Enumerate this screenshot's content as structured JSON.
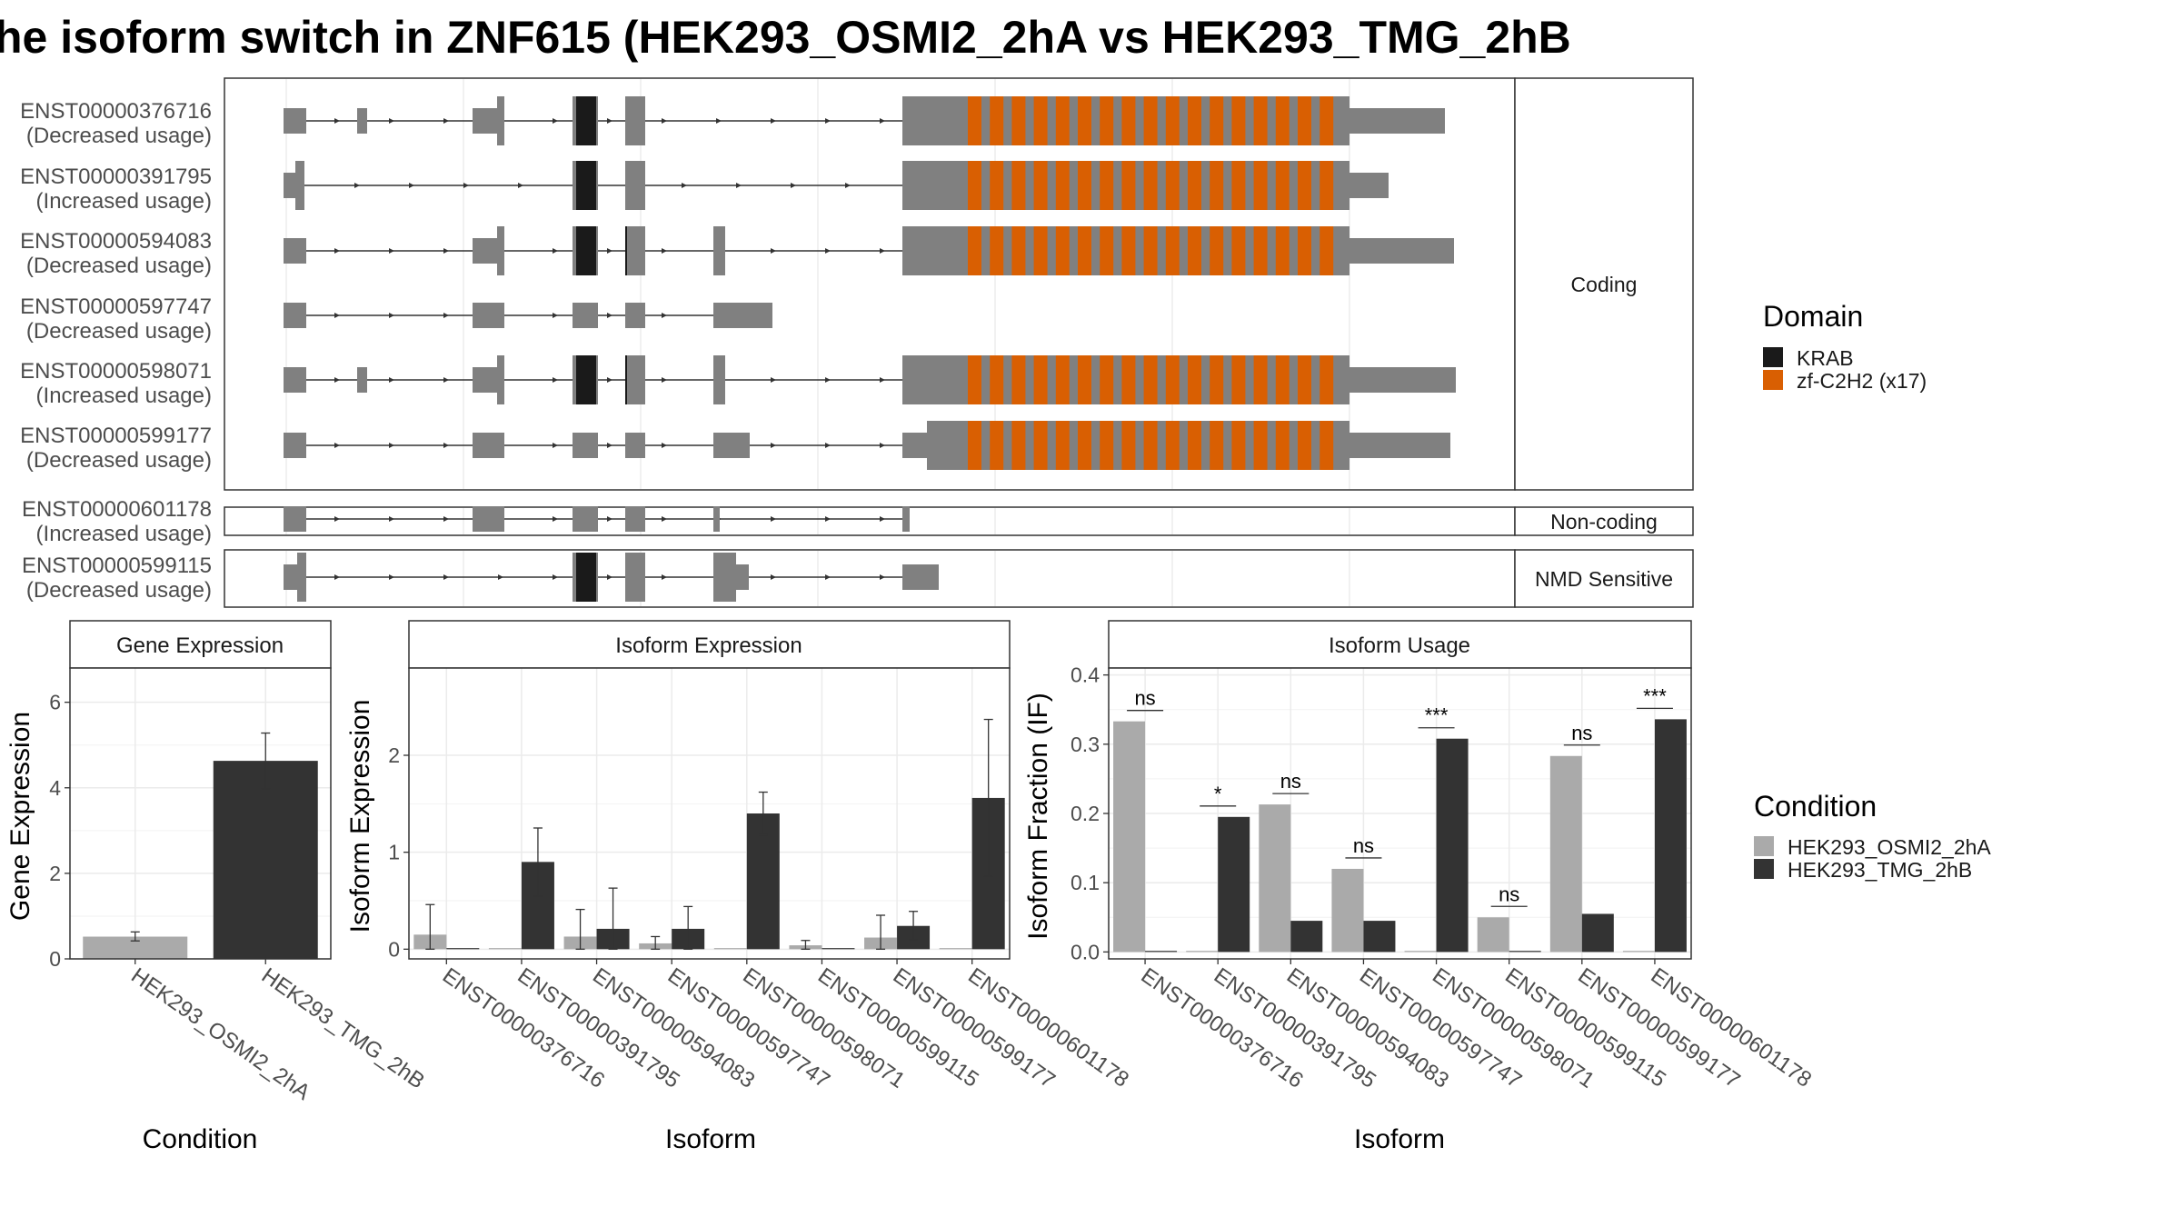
{
  "title": "he isoform switch in ZNF615 (HEK293_OSMI2_2hA vs HEK293_TMG_2hB",
  "colors": {
    "exon": "#808080",
    "krab": "#1a1a1a",
    "znf": "#d95f02",
    "cond_a": "#aaaaaa",
    "cond_b": "#333333",
    "grid": "#ebebeb",
    "panel_border": "#333333"
  },
  "structure": {
    "groups": [
      {
        "label": "Coding",
        "isoforms": [
          {
            "id": "ENST00000376716",
            "usage": "(Decreased usage)"
          },
          {
            "id": "ENST00000391795",
            "usage": "(Increased usage)"
          },
          {
            "id": "ENST00000594083",
            "usage": "(Decreased usage)"
          },
          {
            "id": "ENST00000597747",
            "usage": "(Decreased usage)"
          },
          {
            "id": "ENST00000598071",
            "usage": "(Increased usage)"
          },
          {
            "id": "ENST00000599177",
            "usage": "(Decreased usage)"
          }
        ]
      },
      {
        "label": "Non-coding",
        "isoforms": [
          {
            "id": "ENST00000601178",
            "usage": "(Increased usage)"
          }
        ]
      },
      {
        "label": "NMD Sensitive",
        "isoforms": [
          {
            "id": "ENST00000599115",
            "usage": "(Decreased usage)"
          }
        ]
      }
    ],
    "legend": {
      "title": "Domain",
      "items": [
        "KRAB",
        "zf-C2H2 (x17)"
      ]
    }
  },
  "chart_data": [
    {
      "type": "bar",
      "title": "Gene Expression",
      "xlabel": "Condition",
      "ylabel": "Gene Expression",
      "ylim": [
        0,
        6.8
      ],
      "yticks": [
        0,
        2,
        4,
        6
      ],
      "categories": [
        "HEK293_OSMI2_2hA",
        "HEK293_TMG_2hB"
      ],
      "values": [
        0.52,
        4.63
      ],
      "error_low": [
        0.42,
        3.98
      ],
      "error_high": [
        0.63,
        5.28
      ]
    },
    {
      "type": "bar",
      "title": "Isoform Expression",
      "xlabel": "Isoform",
      "ylabel": "Isoform Expression",
      "ylim": [
        -0.1,
        2.9
      ],
      "yticks": [
        0,
        1,
        2
      ],
      "categories": [
        "ENST00000376716",
        "ENST00000391795",
        "ENST00000594083",
        "ENST00000597747",
        "ENST00000598071",
        "ENST00000599115",
        "ENST00000599177",
        "ENST00000601178"
      ],
      "series": [
        {
          "name": "HEK293_OSMI2_2hA",
          "values": [
            0.15,
            0,
            0.13,
            0.06,
            0,
            0.04,
            0.12,
            0
          ],
          "error_low": [
            0,
            0,
            0,
            0,
            0,
            0,
            0,
            0
          ],
          "error_high": [
            0.46,
            0,
            0.41,
            0.13,
            0,
            0.09,
            0.35,
            0
          ]
        },
        {
          "name": "HEK293_TMG_2hB",
          "values": [
            0,
            0.9,
            0.21,
            0.21,
            1.4,
            0,
            0.24,
            1.56
          ],
          "error_low": [
            0,
            0.55,
            0,
            0,
            1.18,
            0,
            0.1,
            0.75
          ],
          "error_high": [
            0,
            1.25,
            0.63,
            0.44,
            1.62,
            0,
            0.39,
            2.37
          ]
        }
      ]
    },
    {
      "type": "bar",
      "title": "Isoform Usage",
      "xlabel": "Isoform",
      "ylabel": "Isoform Fraction (IF)",
      "ylim": [
        -0.01,
        0.41
      ],
      "yticks": [
        0.0,
        0.1,
        0.2,
        0.3,
        0.4
      ],
      "categories": [
        "ENST00000376716",
        "ENST00000391795",
        "ENST00000594083",
        "ENST00000597747",
        "ENST00000598071",
        "ENST00000599115",
        "ENST00000599177",
        "ENST00000601178"
      ],
      "series": [
        {
          "name": "HEK293_OSMI2_2hA",
          "values": [
            0.333,
            0,
            0.213,
            0.12,
            0,
            0.05,
            0.283,
            0
          ]
        },
        {
          "name": "HEK293_TMG_2hB",
          "values": [
            0,
            0.195,
            0.045,
            0.045,
            0.308,
            0,
            0.055,
            0.336
          ]
        }
      ],
      "significance": [
        "ns",
        "*",
        "ns",
        "ns",
        "***",
        "ns",
        "ns",
        "***"
      ]
    }
  ],
  "condition_legend": {
    "title": "Condition",
    "items": [
      "HEK293_OSMI2_2hA",
      "HEK293_TMG_2hB"
    ]
  }
}
